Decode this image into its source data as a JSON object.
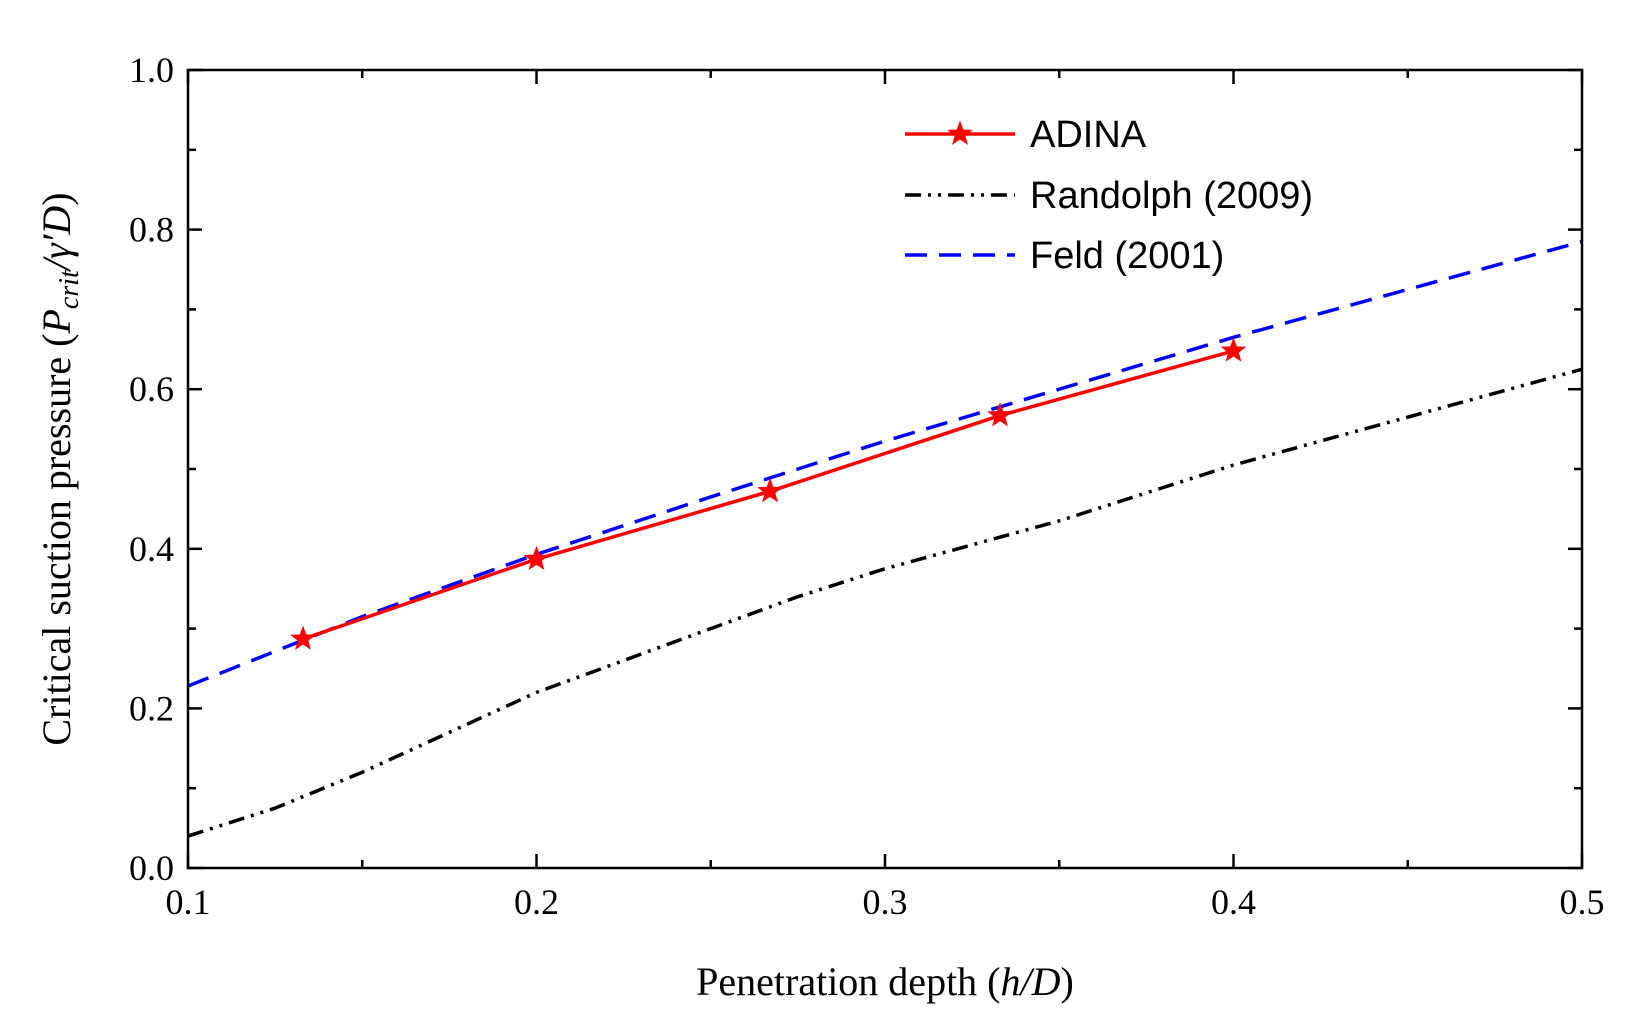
{
  "chart_data": {
    "type": "line",
    "title": "",
    "xlabel": {
      "prefix": "Penetration depth (",
      "var1": "h",
      "slash": "/",
      "var2": "D",
      "suffix": ")"
    },
    "ylabel": {
      "prefix": "Critical suction pressure (",
      "var1": "P",
      "sub": "crit",
      "slash": "/",
      "var2": "γ′D",
      "suffix": ")"
    },
    "xlim": [
      0.1,
      0.5
    ],
    "ylim": [
      0.0,
      1.0
    ],
    "x_ticks": [
      "0.1",
      "0.2",
      "0.3",
      "0.4",
      "0.5"
    ],
    "y_ticks": [
      "0.0",
      "0.2",
      "0.4",
      "0.6",
      "0.8",
      "1.0"
    ],
    "legend_position": "top-right",
    "series": [
      {
        "name": "ADINA",
        "color": "#ff0000",
        "line_style": "solid",
        "marker": "star",
        "x": [
          0.133,
          0.2,
          0.267,
          0.333,
          0.4
        ],
        "y": [
          0.287,
          0.387,
          0.472,
          0.567,
          0.648
        ]
      },
      {
        "name": "Randolph (2009)",
        "color": "#000000",
        "line_style": "dash-dot-dot",
        "marker": "none",
        "x": [
          0.1,
          0.125,
          0.15,
          0.175,
          0.2,
          0.225,
          0.25,
          0.275,
          0.3,
          0.325,
          0.35,
          0.375,
          0.4,
          0.425,
          0.45,
          0.475,
          0.5
        ],
        "y": [
          0.04,
          0.075,
          0.12,
          0.17,
          0.22,
          0.26,
          0.3,
          0.34,
          0.375,
          0.405,
          0.435,
          0.47,
          0.505,
          0.535,
          0.565,
          0.595,
          0.625
        ]
      },
      {
        "name": "Feld (2001)",
        "color": "#0000ff",
        "line_style": "dashed",
        "marker": "none",
        "x": [
          0.1,
          0.15,
          0.2,
          0.25,
          0.3,
          0.35,
          0.4,
          0.45,
          0.5
        ],
        "y": [
          0.228,
          0.315,
          0.393,
          0.465,
          0.535,
          0.6,
          0.665,
          0.725,
          0.785
        ]
      }
    ]
  }
}
